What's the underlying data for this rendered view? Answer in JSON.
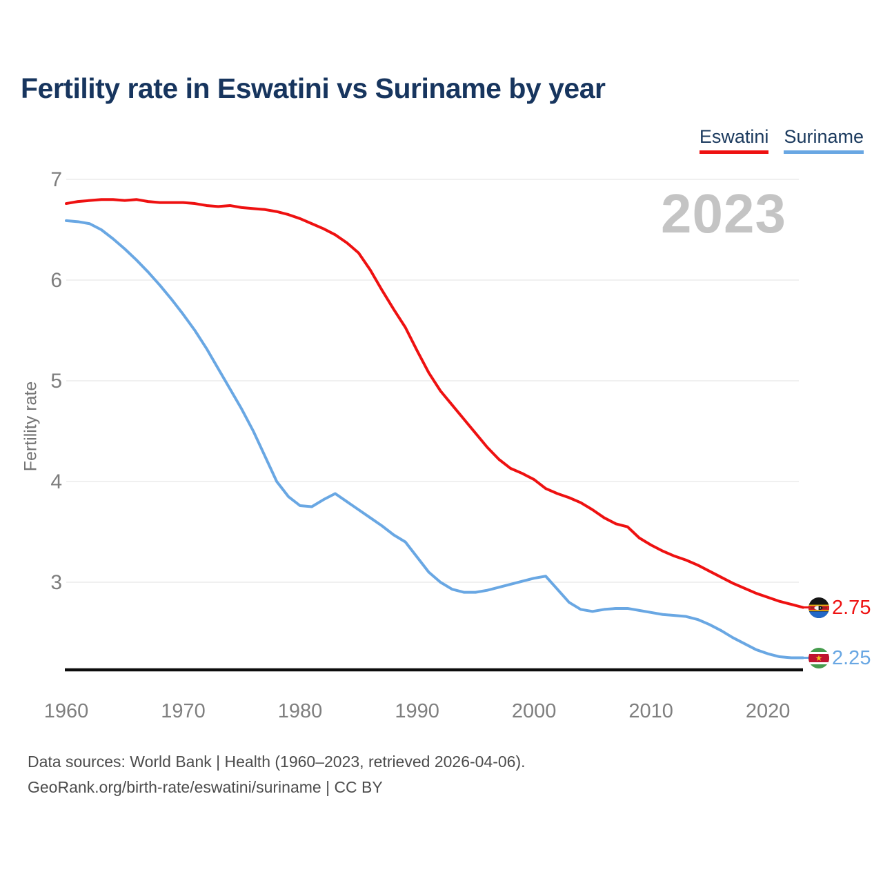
{
  "title": "Fertility rate in Eswatini vs Suriname by year",
  "watermark": "2023",
  "ylabel": "Fertility rate",
  "legend": [
    {
      "label": "Eswatini",
      "color": "#ee1111"
    },
    {
      "label": "Suriname",
      "color": "#69a7e3"
    }
  ],
  "end_labels": [
    {
      "series": "Eswatini",
      "value": "2.75",
      "flag": "eswatini-flag"
    },
    {
      "series": "Suriname",
      "value": "2.25",
      "flag": "suriname-flag"
    }
  ],
  "footer": {
    "line1": "Data sources: World Bank | Health (1960–2023, retrieved 2026-04-06).",
    "line2": "GeoRank.org/birth-rate/eswatini/suriname | CC BY"
  },
  "chart_data": {
    "type": "line",
    "title": "Fertility rate in Eswatini vs Suriname by year",
    "xlabel": "",
    "ylabel": "Fertility rate",
    "grid": true,
    "legend_position": "top-right",
    "x_ticks": [
      1960,
      1970,
      1980,
      1990,
      2000,
      2010,
      2020
    ],
    "y_ticks": [
      7,
      6,
      5,
      4,
      3
    ],
    "xlim": [
      1960,
      2023
    ],
    "ylim": [
      2.1,
      7.05
    ],
    "x": [
      1960,
      1961,
      1962,
      1963,
      1964,
      1965,
      1966,
      1967,
      1968,
      1969,
      1970,
      1971,
      1972,
      1973,
      1974,
      1975,
      1976,
      1977,
      1978,
      1979,
      1980,
      1981,
      1982,
      1983,
      1984,
      1985,
      1986,
      1987,
      1988,
      1989,
      1990,
      1991,
      1992,
      1993,
      1994,
      1995,
      1996,
      1997,
      1998,
      1999,
      2000,
      2001,
      2002,
      2003,
      2004,
      2005,
      2006,
      2007,
      2008,
      2009,
      2010,
      2011,
      2012,
      2013,
      2014,
      2015,
      2016,
      2017,
      2018,
      2019,
      2020,
      2021,
      2022,
      2023
    ],
    "series": [
      {
        "name": "Eswatini",
        "color": "#ee1111",
        "values": [
          6.76,
          6.78,
          6.79,
          6.8,
          6.8,
          6.79,
          6.8,
          6.78,
          6.77,
          6.77,
          6.77,
          6.76,
          6.74,
          6.73,
          6.74,
          6.72,
          6.71,
          6.7,
          6.68,
          6.65,
          6.61,
          6.56,
          6.51,
          6.45,
          6.37,
          6.27,
          6.1,
          5.9,
          5.71,
          5.53,
          5.3,
          5.08,
          4.9,
          4.76,
          4.62,
          4.48,
          4.34,
          4.22,
          4.13,
          4.08,
          4.02,
          3.93,
          3.88,
          3.84,
          3.79,
          3.72,
          3.64,
          3.58,
          3.55,
          3.44,
          3.37,
          3.31,
          3.26,
          3.22,
          3.17,
          3.11,
          3.05,
          2.99,
          2.94,
          2.89,
          2.85,
          2.81,
          2.78,
          2.75
        ]
      },
      {
        "name": "Suriname",
        "color": "#69a7e3",
        "values": [
          6.59,
          6.58,
          6.56,
          6.5,
          6.41,
          6.31,
          6.2,
          6.08,
          5.95,
          5.81,
          5.66,
          5.5,
          5.32,
          5.12,
          4.92,
          4.72,
          4.5,
          4.25,
          4.0,
          3.85,
          3.76,
          3.75,
          3.82,
          3.88,
          3.8,
          3.72,
          3.64,
          3.56,
          3.47,
          3.4,
          3.25,
          3.1,
          3.0,
          2.93,
          2.9,
          2.9,
          2.92,
          2.95,
          2.98,
          3.01,
          3.04,
          3.06,
          2.93,
          2.8,
          2.73,
          2.71,
          2.73,
          2.74,
          2.74,
          2.72,
          2.7,
          2.68,
          2.67,
          2.66,
          2.63,
          2.58,
          2.52,
          2.45,
          2.39,
          2.33,
          2.29,
          2.26,
          2.25,
          2.25
        ]
      }
    ]
  }
}
